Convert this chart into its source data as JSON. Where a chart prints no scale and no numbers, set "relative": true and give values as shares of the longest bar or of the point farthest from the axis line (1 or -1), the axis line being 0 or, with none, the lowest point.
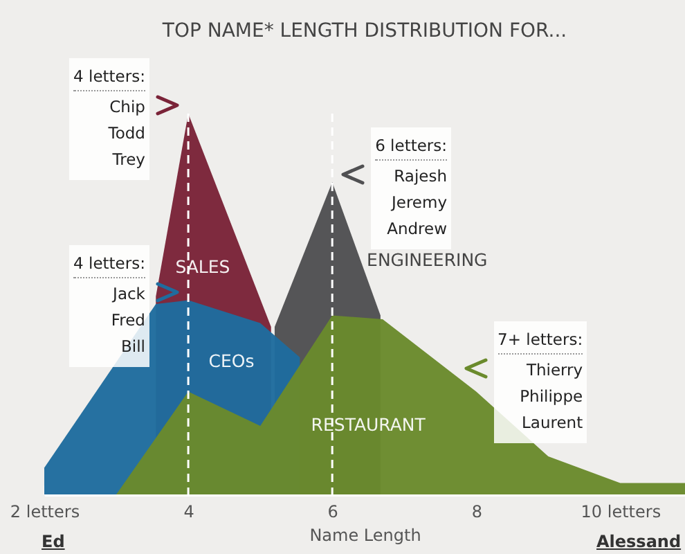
{
  "chart_data": {
    "type": "area",
    "title": "TOP NAME* LENGTH DISTRIBUTION FOR...",
    "xlabel": "Name Length",
    "relative": true,
    "xlim": [
      2,
      10.9
    ],
    "xticks": [
      {
        "value": 2,
        "label": "2 letters"
      },
      4,
      6,
      8,
      {
        "value": 10,
        "label": "10 letters"
      }
    ],
    "series": [
      {
        "name": "SALES",
        "color": "#7a2338",
        "x": [
          3.55,
          4,
          5.15
        ],
        "values": [
          0.52,
          1,
          0.44
        ]
      },
      {
        "name": "ENGINEERING",
        "color": "#505052",
        "x": [
          5.2,
          6,
          6.67
        ],
        "values": [
          0.44,
          0.82,
          0.47
        ]
      },
      {
        "name": "CEOs",
        "color": "#1f6c9e",
        "x": [
          2,
          3.55,
          4,
          5,
          5.55
        ],
        "values": [
          0.07,
          0.5,
          0.51,
          0.45,
          0.36
        ]
      },
      {
        "name": "RESTAURANT",
        "color": "#6a8a2c",
        "x": [
          3,
          4,
          5,
          6,
          6.7,
          8,
          9,
          10,
          10.9
        ],
        "values": [
          0,
          0.27,
          0.18,
          0.47,
          0.46,
          0.27,
          0.1,
          0.03,
          0.03
        ]
      }
    ],
    "ref_lines": [
      {
        "axis": "x",
        "value": 4,
        "color": "#ffffff",
        "line_style": "dashed"
      },
      {
        "axis": "x",
        "value": 6,
        "color": "#ffffff",
        "line_style": "dashed"
      }
    ],
    "annotations": [
      {
        "text": "4 letters:\nChip\nTodd\nTrey",
        "x": 4,
        "y": 1
      },
      {
        "text": "6 letters:\nRajesh\nJeremy\nAndrew",
        "x": 6,
        "y": 0.82
      },
      {
        "text": "4 letters:\nJack\nFred\nBill",
        "x": 4,
        "y": 0.51
      },
      {
        "text": "7+ letters:\nThierry\nPhilippe\nLaurent",
        "x": 7.7,
        "y": 0.31
      },
      "Ed",
      "Alessand"
    ]
  }
}
